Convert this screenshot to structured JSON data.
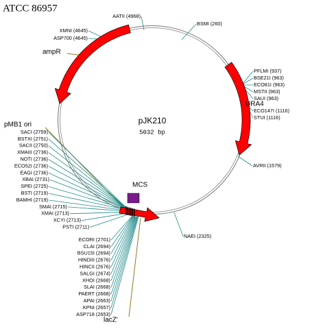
{
  "title": "ATCC 86957",
  "plasmid": {
    "name": "pJK210",
    "size": "5032 bp"
  },
  "features": [
    {
      "label": "ampR"
    },
    {
      "label": "URA4"
    },
    {
      "label": "pMB1 ori"
    },
    {
      "label": "MCS"
    },
    {
      "label": "lacZ'"
    }
  ],
  "sites": [
    "AATII (4968)",
    "XMNI (4645)",
    "ASP700 (4645)",
    "BSMI (260)",
    "PFLMI (937)",
    "BSE21I (963)",
    "ECO81I (963)",
    "MSTII (963)",
    "SAUI (963)",
    "ECO147I (1116)",
    "STUI (1116)",
    "AVRII (1579)",
    "NAEI (2325)",
    "SACI (2759)",
    "BSTXI (2751)",
    "SACII (2750)",
    "XMAIII (2736)",
    "NOTI (2736)",
    "ECO52I (2736)",
    "EAGI (2736)",
    "XBAI (2731)",
    "SPEI (2725)",
    "BSTI (2719)",
    "BAMHI (2719)",
    "SMAI (2715)",
    "XMAI (2713)",
    "XCYI (2713)",
    "PSTI (2711)",
    "ECORI (2701)",
    "CLAI (2694)",
    "BSU15I (2694)",
    "HINDIII (2676)",
    "HINCII (2676)",
    "SALGI (2674)",
    "XHOI (2668)",
    "SLAI (2668)",
    "PAERT (2668)",
    "APAI (2663)",
    "KPNI (2657)",
    "ASP718 (2653)"
  ]
}
